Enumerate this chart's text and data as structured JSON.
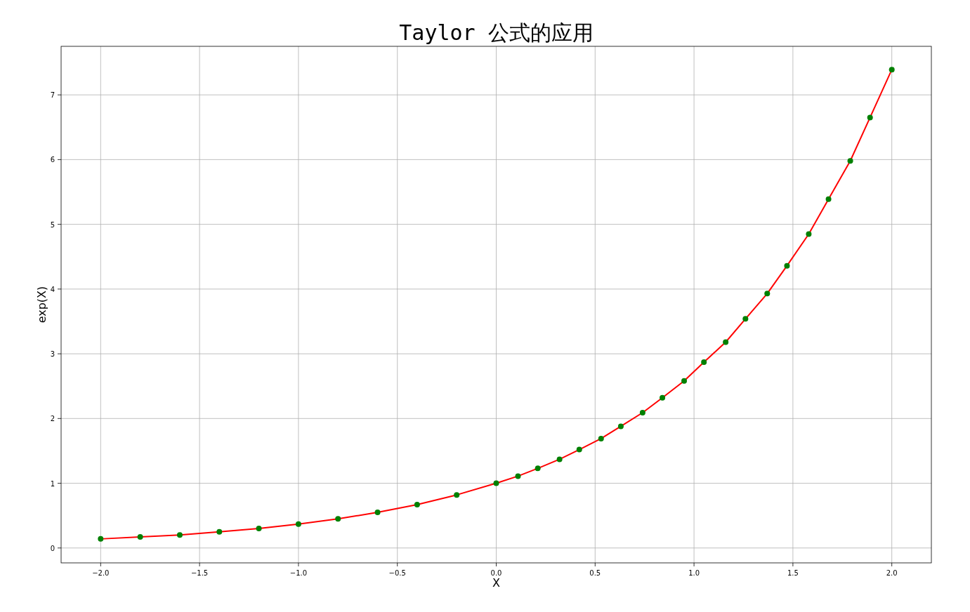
{
  "chart_data": {
    "type": "line",
    "title": "Taylor 公式的应用",
    "xlabel": "X",
    "ylabel": "exp(X)",
    "x": [
      -2.0,
      -1.8,
      -1.6,
      -1.4,
      -1.2,
      -1.0,
      -0.8,
      -0.6,
      -0.4,
      -0.2,
      0.0,
      0.11,
      0.21,
      0.32,
      0.42,
      0.53,
      0.63,
      0.74,
      0.84,
      0.95,
      1.05,
      1.16,
      1.26,
      1.37,
      1.47,
      1.58,
      1.68,
      1.79,
      1.89,
      2.0
    ],
    "series": [
      {
        "type": "line",
        "color": "#ff0000",
        "line_style": "solid",
        "values": [
          0.14,
          0.17,
          0.2,
          0.25,
          0.3,
          0.37,
          0.45,
          0.55,
          0.67,
          0.82,
          1.0,
          1.11,
          1.23,
          1.37,
          1.52,
          1.69,
          1.88,
          2.09,
          2.32,
          2.58,
          2.87,
          3.18,
          3.54,
          3.93,
          4.36,
          4.85,
          5.39,
          5.98,
          6.65,
          7.39
        ]
      },
      {
        "type": "scatter",
        "color": "#008000",
        "marker": "circle",
        "values": [
          0.14,
          0.17,
          0.2,
          0.25,
          0.3,
          0.37,
          0.45,
          0.55,
          0.67,
          0.82,
          1.0,
          1.11,
          1.23,
          1.37,
          1.52,
          1.69,
          1.88,
          2.09,
          2.32,
          2.58,
          2.87,
          3.18,
          3.54,
          3.93,
          4.36,
          4.85,
          5.39,
          5.98,
          6.65,
          7.39
        ]
      }
    ],
    "xlim": [
      -2.2,
      2.2
    ],
    "ylim": [
      -0.23,
      7.75
    ],
    "xticks": [
      {
        "value": -2.0,
        "label": "−2.0"
      },
      {
        "value": -1.5,
        "label": "−1.5"
      },
      {
        "value": -1.0,
        "label": "−1.0"
      },
      {
        "value": -0.5,
        "label": "−0.5"
      },
      {
        "value": 0.0,
        "label": "0.0"
      },
      {
        "value": 0.5,
        "label": "0.5"
      },
      {
        "value": 1.0,
        "label": "1.0"
      },
      {
        "value": 1.5,
        "label": "1.5"
      },
      {
        "value": 2.0,
        "label": "2.0"
      }
    ],
    "yticks": [
      0,
      1,
      2,
      3,
      4,
      5,
      6,
      7
    ],
    "grid": true
  }
}
